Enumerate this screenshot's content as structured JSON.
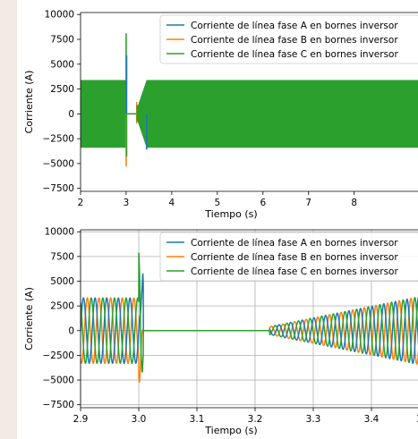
{
  "chart_data": [
    {
      "type": "line",
      "xlabel": "Tiempo (s)",
      "ylabel": "Corriente (A)",
      "xlim": [
        2.0,
        9.4
      ],
      "ylim": [
        -7800,
        10200
      ],
      "x_ticks": [
        2,
        3,
        4,
        5,
        6,
        7,
        8
      ],
      "x_tick_labels": [
        "2",
        "3",
        "4",
        "5",
        "6",
        "7",
        "8"
      ],
      "y_ticks": [
        -7500,
        -5000,
        -2500,
        0,
        2500,
        5000,
        7500,
        10000
      ],
      "y_tick_labels": [
        "−7500",
        "−5000",
        "−2500",
        "0",
        "2500",
        "5000",
        "7500",
        "10000"
      ],
      "grid": false,
      "legend_position": "top-right",
      "series": [
        {
          "name": "Corriente de línea fase A en bornes inversor",
          "color": "#1f77b4"
        },
        {
          "name": "Corriente de línea fase B en bornes inversor",
          "color": "#ff7f0e"
        },
        {
          "name": "Corriente de línea fase C en bornes inversor",
          "color": "#2ca02c"
        }
      ],
      "envelope": {
        "steady_amplitude": 3400,
        "steady_intervals": [
          [
            2.0,
            3.0
          ],
          [
            3.45,
            9.4
          ]
        ],
        "zero_interval": [
          3.03,
          3.22
        ],
        "ramp_interval": [
          3.22,
          3.45
        ],
        "peaks": [
          {
            "x": 3.0,
            "phase": "C",
            "value": 8100
          },
          {
            "x": 3.01,
            "phase": "A",
            "value": 5900
          },
          {
            "x": 3.0,
            "phase": "B",
            "value": -5300
          },
          {
            "x": 3.01,
            "phase": "C",
            "value": -4300
          },
          {
            "x": 3.45,
            "phase": "A",
            "value": -3600
          }
        ]
      }
    },
    {
      "type": "line",
      "xlabel": "Tiempo (s)",
      "ylabel": "Corriente (A)",
      "xlim": [
        2.9,
        3.48
      ],
      "ylim": [
        -7800,
        10200
      ],
      "x_ticks": [
        2.9,
        3.0,
        3.1,
        3.2,
        3.3,
        3.4
      ],
      "x_tick_labels": [
        "2.9",
        "3.0",
        "3.1",
        "3.2",
        "3.3",
        "3.4"
      ],
      "x_tick_label_partial": "3",
      "y_ticks": [
        -7500,
        -5000,
        -2500,
        0,
        2500,
        5000,
        7500,
        10000
      ],
      "y_tick_labels": [
        "−7500",
        "−5000",
        "−2500",
        "0",
        "2500",
        "5000",
        "7500",
        "10000"
      ],
      "grid": true,
      "legend_position": "top-right",
      "series": [
        {
          "name": "Corriente de línea fase A en bornes inversor",
          "color": "#1f77b4"
        },
        {
          "name": "Corriente de línea fase B en bornes inversor",
          "color": "#ff7f0e"
        },
        {
          "name": "Corriente de línea fase C en bornes inversor",
          "color": "#2ca02c"
        }
      ],
      "waveform": {
        "frequency_hz": 50,
        "pre_fault_amplitude": 3300,
        "fault_time": 3.0,
        "zero_interval": [
          3.008,
          3.225
        ],
        "recovery_start_amplitude": 400,
        "recovery_end_amplitude": 3400,
        "recovery_end_time": 3.48,
        "peaks": [
          {
            "x": 3.0,
            "phase": "C",
            "value": 8100
          },
          {
            "x": 3.007,
            "phase": "A",
            "value": 5900
          },
          {
            "x": 3.001,
            "phase": "B",
            "value": -5300
          },
          {
            "x": 3.006,
            "phase": "C",
            "value": -4300
          },
          {
            "x": 3.41,
            "phase": "A",
            "value": -3700
          }
        ]
      }
    }
  ]
}
